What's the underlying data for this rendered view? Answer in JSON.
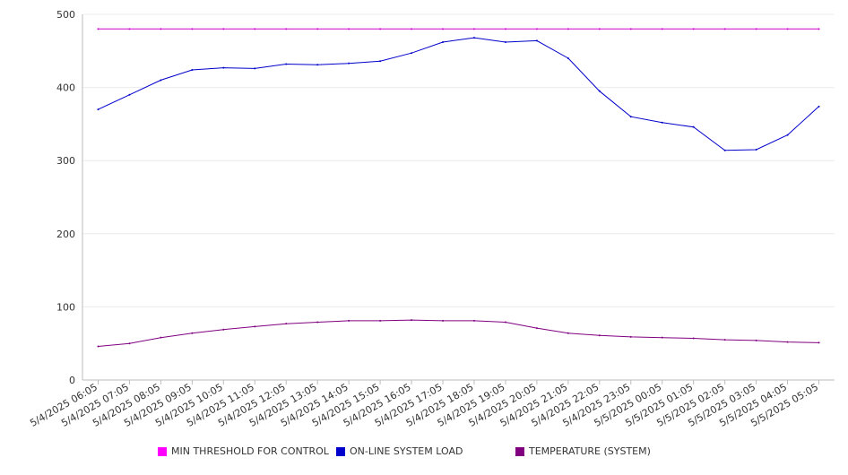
{
  "chart_data": {
    "type": "line",
    "title": "",
    "xlabel": "",
    "ylabel": "",
    "ylim": [
      0,
      500
    ],
    "yticks": [
      0,
      100,
      200,
      300,
      400,
      500
    ],
    "grid": true,
    "legend_position": "bottom",
    "x": [
      "5/4/2025 06:05",
      "5/4/2025 07:05",
      "5/4/2025 08:05",
      "5/4/2025 09:05",
      "5/4/2025 10:05",
      "5/4/2025 11:05",
      "5/4/2025 12:05",
      "5/4/2025 13:05",
      "5/4/2025 14:05",
      "5/4/2025 15:05",
      "5/4/2025 16:05",
      "5/4/2025 17:05",
      "5/4/2025 18:05",
      "5/4/2025 19:05",
      "5/4/2025 20:05",
      "5/4/2025 21:05",
      "5/4/2025 22:05",
      "5/4/2025 23:05",
      "5/5/2025 00:05",
      "5/5/2025 01:05",
      "5/5/2025 02:05",
      "5/5/2025 03:05",
      "5/5/2025 04:05",
      "5/5/2025 05:05"
    ],
    "series": [
      {
        "name": "MIN THRESHOLD FOR CONTROL",
        "color": "#cc00cc",
        "values": [
          480,
          480,
          480,
          480,
          480,
          480,
          480,
          480,
          480,
          480,
          480,
          480,
          480,
          480,
          480,
          480,
          480,
          480,
          480,
          480,
          480,
          480,
          480,
          480
        ]
      },
      {
        "name": "ON-LINE SYSTEM LOAD",
        "color": "#0000cc",
        "values": [
          370,
          390,
          410,
          424,
          427,
          426,
          432,
          431,
          433,
          436,
          447,
          462,
          468,
          462,
          464,
          440,
          395,
          360,
          352,
          346,
          314,
          315,
          335,
          374
        ]
      },
      {
        "name": "TEMPERATURE (SYSTEM)",
        "color": "#800080",
        "values": [
          46,
          50,
          58,
          64,
          69,
          73,
          77,
          79,
          81,
          81,
          82,
          81,
          81,
          79,
          71,
          64,
          61,
          59,
          58,
          57,
          55,
          54,
          52,
          51
        ]
      }
    ]
  }
}
